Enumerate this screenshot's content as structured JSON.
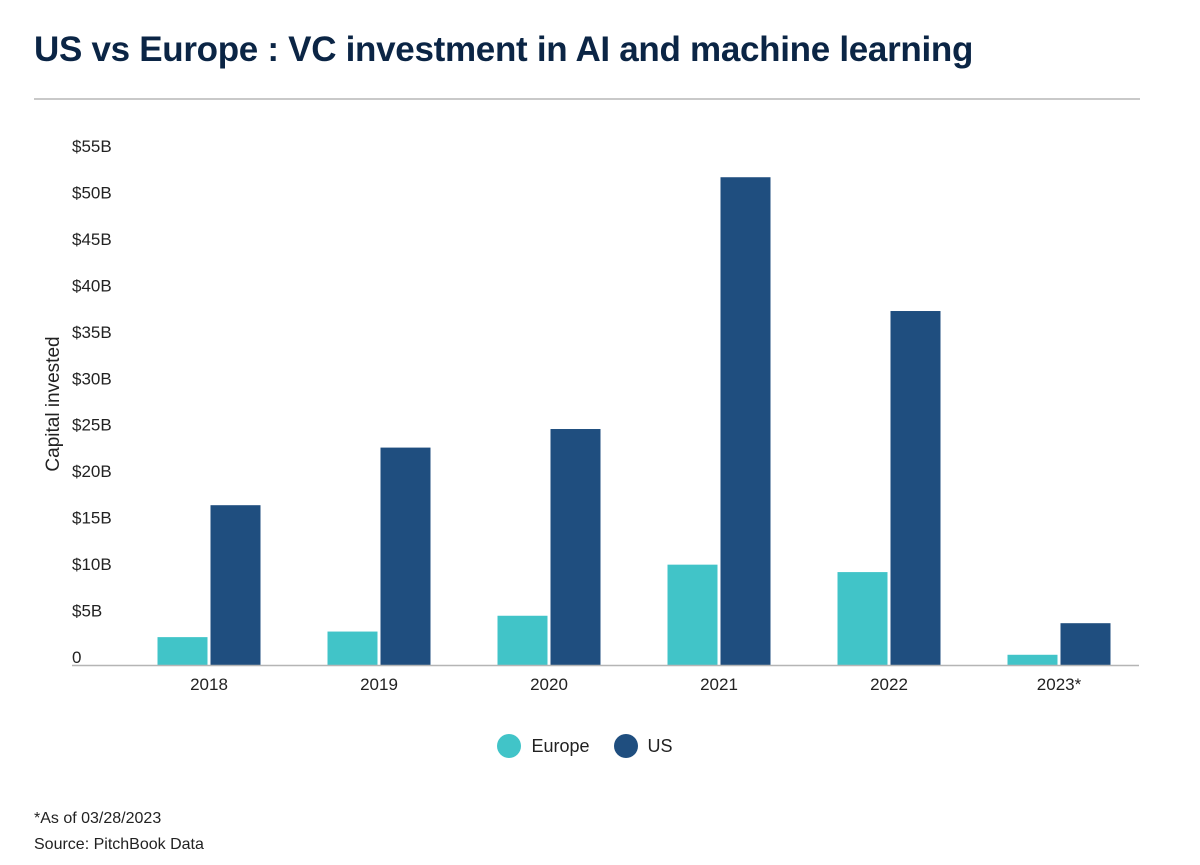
{
  "chart_data": {
    "type": "bar",
    "title": "US vs Europe : VC investment in  AI and machine learning",
    "ylabel": "Capital invested",
    "xlabel": "",
    "categories": [
      "2018",
      "2019",
      "2020",
      "2021",
      "2022",
      "2023*"
    ],
    "series": [
      {
        "name": "Europe",
        "color": "#41c4c8",
        "values": [
          3.0,
          3.6,
          5.3,
          10.8,
          10.0,
          1.1
        ]
      },
      {
        "name": "US",
        "color": "#1f4e7f",
        "values": [
          17.2,
          23.4,
          25.4,
          52.5,
          38.1,
          4.5
        ]
      }
    ],
    "ylim": [
      0,
      55
    ],
    "yticks": [
      {
        "value": 0,
        "label": "0"
      },
      {
        "value": 5,
        "label": "$5B"
      },
      {
        "value": 10,
        "label": "$10B"
      },
      {
        "value": 15,
        "label": "$15B"
      },
      {
        "value": 20,
        "label": "$20B"
      },
      {
        "value": 25,
        "label": "$25B"
      },
      {
        "value": 30,
        "label": "$30B"
      },
      {
        "value": 35,
        "label": "$35B"
      },
      {
        "value": 40,
        "label": "$40B"
      },
      {
        "value": 45,
        "label": "$45B"
      },
      {
        "value": 50,
        "label": "$50B"
      },
      {
        "value": 55,
        "label": "$55B"
      }
    ],
    "grid": false,
    "legend": "bottom-center"
  },
  "footnote": "*As of 03/28/2023",
  "source": "Source: PitchBook Data"
}
